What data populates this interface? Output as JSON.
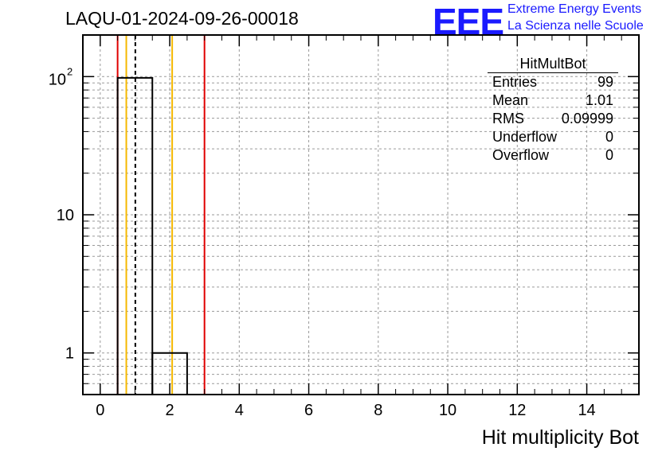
{
  "header": {
    "title": "LAQU-01-2024-09-26-00018",
    "logo_text": "EEE",
    "logo_line1": "Extreme Energy Events",
    "logo_line2": "La Scienza nelle Scuole"
  },
  "stats": {
    "title": "HitMultBot",
    "rows": [
      {
        "label": "Entries",
        "value": "99"
      },
      {
        "label": "Mean",
        "value": "1.01"
      },
      {
        "label": "RMS",
        "value": "0.09999"
      },
      {
        "label": "Underflow",
        "value": "0"
      },
      {
        "label": "Overflow",
        "value": "0"
      }
    ]
  },
  "chart_data": {
    "type": "histogram",
    "title": "LAQU-01-2024-09-26-00018",
    "xlabel": "Hit multiplicity Bot",
    "ylabel": "",
    "xlim": [
      -0.5,
      15.5
    ],
    "ylim": [
      0.5,
      200
    ],
    "yscale": "log",
    "grid": true,
    "bins": [
      {
        "x0": 0.5,
        "x1": 1.5,
        "count": 98
      },
      {
        "x0": 1.5,
        "x1": 2.5,
        "count": 1
      }
    ],
    "x_ticks": [
      "0",
      "2",
      "4",
      "6",
      "8",
      "10",
      "12",
      "14"
    ],
    "y_ticks": [
      "1",
      "10",
      "10^2"
    ],
    "vertical_lines": [
      {
        "x": 0.5,
        "color": "#e00000",
        "style": "solid"
      },
      {
        "x": 0.75,
        "color": "#f5b800",
        "style": "solid"
      },
      {
        "x": 1.01,
        "color": "#000000",
        "style": "dashed"
      },
      {
        "x": 2.07,
        "color": "#f5b800",
        "style": "solid"
      },
      {
        "x": 3.0,
        "color": "#e00000",
        "style": "solid"
      }
    ]
  }
}
